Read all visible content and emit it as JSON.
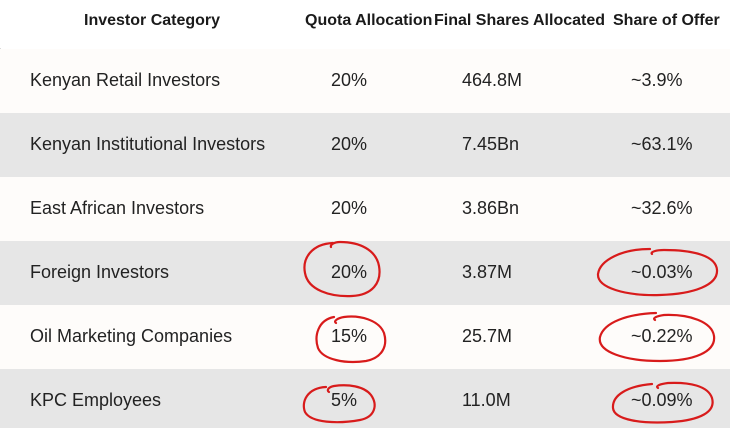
{
  "table": {
    "headers": [
      "Investor Category",
      "Quota Allocation",
      "Final Shares Allocated",
      "Share of Offer"
    ],
    "rows": [
      {
        "category": "Kenyan Retail Investors",
        "quota": "20%",
        "shares": "464.8M",
        "share_of_offer": "~3.9%"
      },
      {
        "category": "Kenyan Institutional Investors",
        "quota": "20%",
        "shares": "7.45Bn",
        "share_of_offer": "~63.1%"
      },
      {
        "category": "East African Investors",
        "quota": "20%",
        "shares": "3.86Bn",
        "share_of_offer": "~32.6%"
      },
      {
        "category": "Foreign Investors",
        "quota": "20%",
        "shares": "3.87M",
        "share_of_offer": "~0.03%"
      },
      {
        "category": "Oil Marketing Companies",
        "quota": "15%",
        "shares": "25.7M",
        "share_of_offer": "~0.22%"
      },
      {
        "category": "KPC Employees",
        "quota": "5%",
        "shares": "11.0M",
        "share_of_offer": "~0.09%"
      }
    ]
  },
  "colors": {
    "annotation": "#d81b1b",
    "row_light": "#fefcfa",
    "row_dark": "#e6e6e6"
  }
}
